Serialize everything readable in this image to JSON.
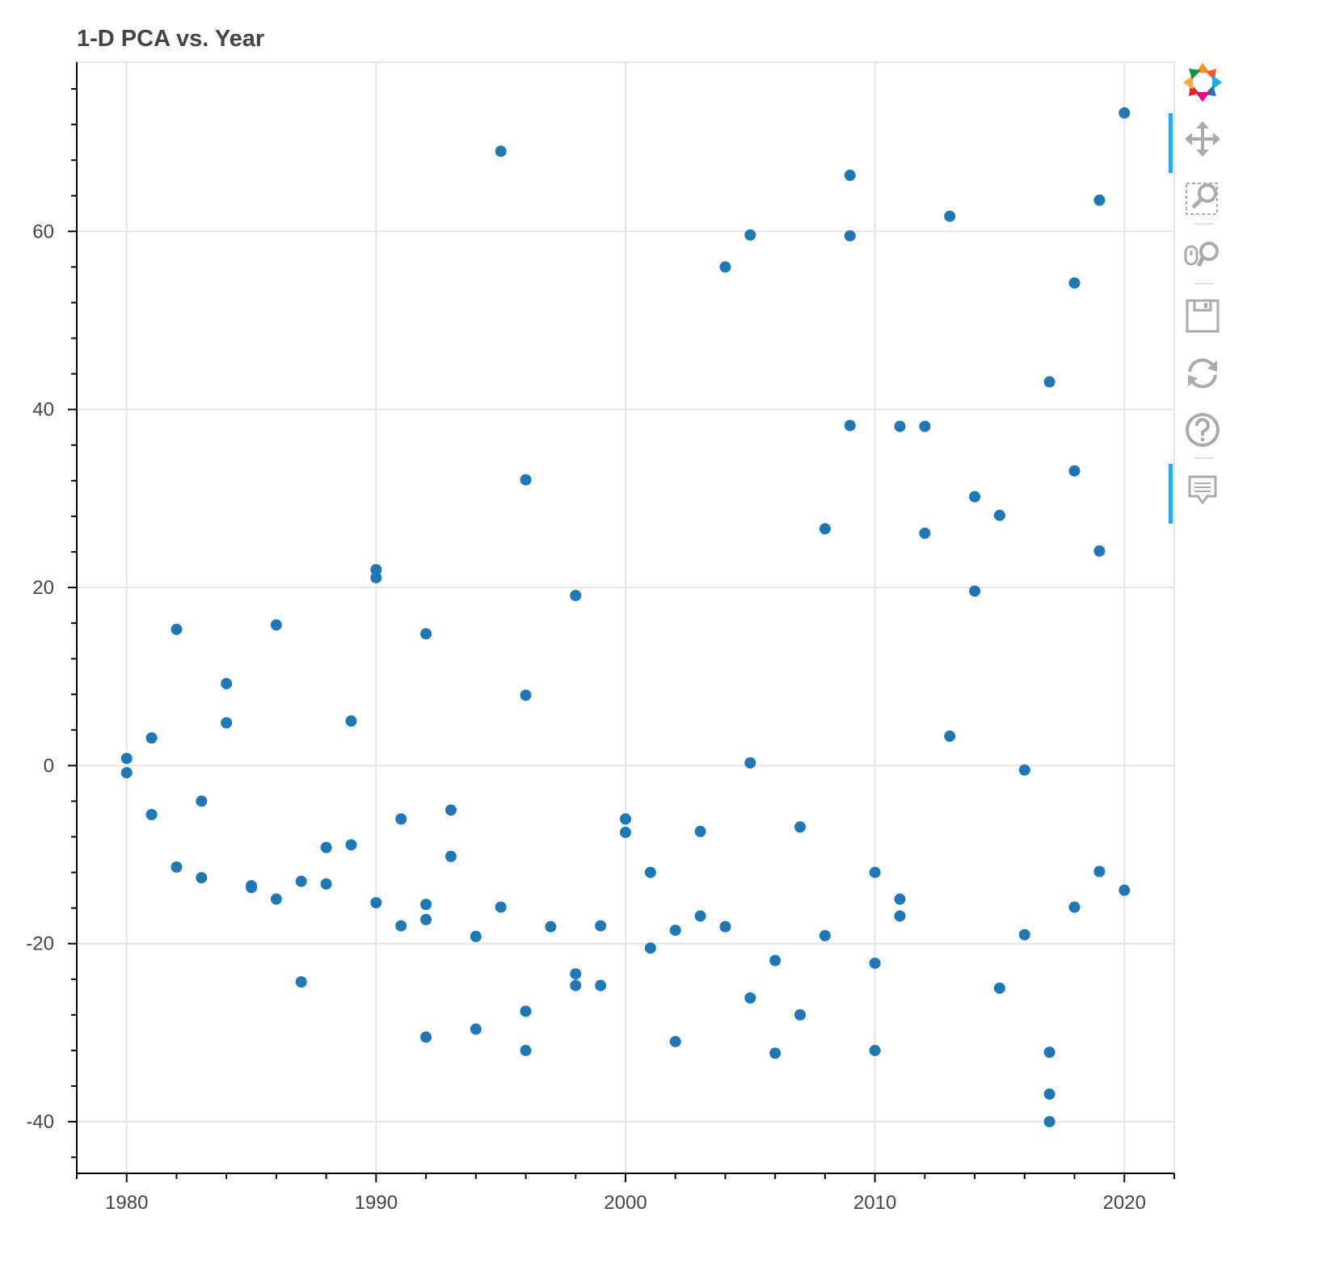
{
  "chart_data": {
    "type": "scatter",
    "title": "1-D PCA vs. Year",
    "xlabel": "",
    "ylabel": "",
    "xlim": [
      1978,
      2022
    ],
    "ylim": [
      -45.8,
      79
    ],
    "x_ticks": [
      1980,
      1990,
      2000,
      2010,
      2020
    ],
    "y_ticks": [
      -40,
      -20,
      0,
      20,
      40,
      60
    ],
    "x_tick_labels": [
      "1980",
      "1990",
      "2000",
      "2010",
      "2020"
    ],
    "y_tick_labels": [
      "-40",
      "-20",
      "0",
      "20",
      "40",
      "60"
    ],
    "grid": true,
    "marker_color": "#1f77b4",
    "points": [
      {
        "x": 1980,
        "y": 0.8
      },
      {
        "x": 1980,
        "y": -0.8
      },
      {
        "x": 1981,
        "y": 3.1
      },
      {
        "x": 1981,
        "y": -5.5
      },
      {
        "x": 1982,
        "y": 15.3
      },
      {
        "x": 1982,
        "y": -11.4
      },
      {
        "x": 1983,
        "y": -4.0
      },
      {
        "x": 1983,
        "y": -12.6
      },
      {
        "x": 1984,
        "y": 9.2
      },
      {
        "x": 1984,
        "y": 4.8
      },
      {
        "x": 1985,
        "y": -13.5
      },
      {
        "x": 1985,
        "y": -13.7
      },
      {
        "x": 1986,
        "y": 15.8
      },
      {
        "x": 1986,
        "y": -15.0
      },
      {
        "x": 1987,
        "y": -13.0
      },
      {
        "x": 1987,
        "y": -24.3
      },
      {
        "x": 1988,
        "y": -9.2
      },
      {
        "x": 1988,
        "y": -13.3
      },
      {
        "x": 1989,
        "y": 5.0
      },
      {
        "x": 1989,
        "y": -8.9
      },
      {
        "x": 1990,
        "y": 22.0
      },
      {
        "x": 1990,
        "y": 21.1
      },
      {
        "x": 1990,
        "y": -15.4
      },
      {
        "x": 1991,
        "y": -6.0
      },
      {
        "x": 1991,
        "y": -18.0
      },
      {
        "x": 1992,
        "y": 14.8
      },
      {
        "x": 1992,
        "y": -15.6
      },
      {
        "x": 1992,
        "y": -17.3
      },
      {
        "x": 1992,
        "y": -30.5
      },
      {
        "x": 1993,
        "y": -5.0
      },
      {
        "x": 1993,
        "y": -10.2
      },
      {
        "x": 1994,
        "y": -19.2
      },
      {
        "x": 1994,
        "y": -29.6
      },
      {
        "x": 1995,
        "y": 69.0
      },
      {
        "x": 1995,
        "y": -15.9
      },
      {
        "x": 1996,
        "y": 32.1
      },
      {
        "x": 1996,
        "y": 7.9
      },
      {
        "x": 1996,
        "y": -27.6
      },
      {
        "x": 1996,
        "y": -32.0
      },
      {
        "x": 1997,
        "y": -18.1
      },
      {
        "x": 1998,
        "y": 19.1
      },
      {
        "x": 1998,
        "y": -23.4
      },
      {
        "x": 1998,
        "y": -24.7
      },
      {
        "x": 1999,
        "y": -18.0
      },
      {
        "x": 1999,
        "y": -24.7
      },
      {
        "x": 2000,
        "y": -6.0
      },
      {
        "x": 2000,
        "y": -7.5
      },
      {
        "x": 2001,
        "y": -12.0
      },
      {
        "x": 2001,
        "y": -20.5
      },
      {
        "x": 2002,
        "y": -18.5
      },
      {
        "x": 2002,
        "y": -31.0
      },
      {
        "x": 2003,
        "y": -7.4
      },
      {
        "x": 2003,
        "y": -16.9
      },
      {
        "x": 2004,
        "y": 56.0
      },
      {
        "x": 2004,
        "y": -18.1
      },
      {
        "x": 2005,
        "y": 59.6
      },
      {
        "x": 2005,
        "y": 0.3
      },
      {
        "x": 2005,
        "y": -26.1
      },
      {
        "x": 2006,
        "y": -21.9
      },
      {
        "x": 2006,
        "y": -32.3
      },
      {
        "x": 2007,
        "y": -6.9
      },
      {
        "x": 2007,
        "y": -28.0
      },
      {
        "x": 2008,
        "y": 26.6
      },
      {
        "x": 2008,
        "y": -19.1
      },
      {
        "x": 2009,
        "y": 66.3
      },
      {
        "x": 2009,
        "y": 59.5
      },
      {
        "x": 2009,
        "y": 38.2
      },
      {
        "x": 2010,
        "y": -12.0
      },
      {
        "x": 2010,
        "y": -22.2
      },
      {
        "x": 2010,
        "y": -32.0
      },
      {
        "x": 2011,
        "y": 38.1
      },
      {
        "x": 2011,
        "y": -15.0
      },
      {
        "x": 2011,
        "y": -16.9
      },
      {
        "x": 2012,
        "y": 38.1
      },
      {
        "x": 2012,
        "y": 26.1
      },
      {
        "x": 2013,
        "y": 61.7
      },
      {
        "x": 2013,
        "y": 3.3
      },
      {
        "x": 2014,
        "y": 30.2
      },
      {
        "x": 2014,
        "y": 19.6
      },
      {
        "x": 2015,
        "y": 28.1
      },
      {
        "x": 2015,
        "y": -25.0
      },
      {
        "x": 2016,
        "y": -0.5
      },
      {
        "x": 2016,
        "y": -19.0
      },
      {
        "x": 2017,
        "y": 43.1
      },
      {
        "x": 2017,
        "y": -32.2
      },
      {
        "x": 2017,
        "y": -36.9
      },
      {
        "x": 2017,
        "y": -40.0
      },
      {
        "x": 2018,
        "y": 54.2
      },
      {
        "x": 2018,
        "y": 33.1
      },
      {
        "x": 2018,
        "y": -15.9
      },
      {
        "x": 2019,
        "y": 63.5
      },
      {
        "x": 2019,
        "y": 24.1
      },
      {
        "x": 2019,
        "y": -11.9
      },
      {
        "x": 2020,
        "y": 73.3
      },
      {
        "x": 2020,
        "y": -14.0
      }
    ]
  },
  "toolbar": {
    "logo": "bokeh-logo-icon",
    "tools": [
      {
        "name": "pan-tool",
        "icon": "move-arrows-icon",
        "active": true
      },
      {
        "name": "box-zoom-tool",
        "icon": "box-zoom-icon",
        "active": false
      },
      {
        "name": "wheel-zoom-tool",
        "icon": "wheel-zoom-icon",
        "active": false
      },
      {
        "name": "save-tool",
        "icon": "save-icon",
        "active": false
      },
      {
        "name": "reset-tool",
        "icon": "reset-icon",
        "active": false
      },
      {
        "name": "help-tool",
        "icon": "help-icon",
        "active": false
      },
      {
        "name": "hover-tool",
        "icon": "hover-icon",
        "active": true
      }
    ],
    "accent_color": "#26aae1",
    "icon_color": "#aaaaaa"
  }
}
